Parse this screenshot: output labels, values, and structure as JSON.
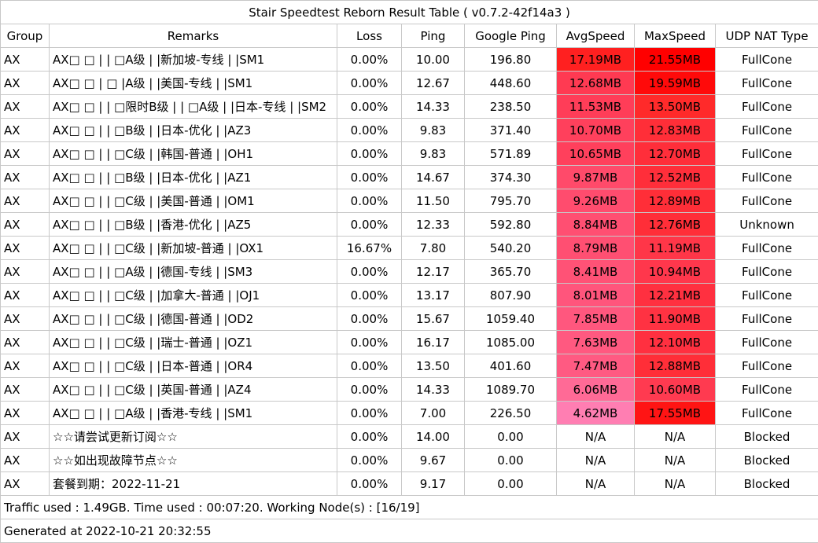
{
  "title": "Stair Speedtest Reborn Result Table ( v0.7.2-42f14a3 )",
  "headers": [
    "Group",
    "Remarks",
    "Loss",
    "Ping",
    "Google Ping",
    "AvgSpeed",
    "MaxSpeed",
    "UDP NAT Type"
  ],
  "rows": [
    {
      "group": "AX",
      "remarks": "AX□ □ | | □A级 | |新加坡-专线 | |SM1",
      "loss": "0.00%",
      "ping": "10.00",
      "google_ping": "196.80",
      "avg_speed": "17.19MB",
      "avg_color": "#ff2020",
      "max_speed": "21.55MB",
      "max_color": "#ff0000",
      "nat": "FullCone"
    },
    {
      "group": "AX",
      "remarks": "AX□ □ | □ |A级 | |美国-专线 | |SM1",
      "loss": "0.00%",
      "ping": "12.67",
      "google_ping": "448.60",
      "avg_speed": "12.68MB",
      "avg_color": "#ff3a52",
      "max_speed": "19.59MB",
      "max_color": "#ff0a0a",
      "nat": "FullCone"
    },
    {
      "group": "AX",
      "remarks": "AX□ □ | | □限时B级 | | □A级 | |日本-专线 | |SM2",
      "loss": "0.00%",
      "ping": "14.33",
      "google_ping": "238.50",
      "avg_speed": "11.53MB",
      "avg_color": "#ff3d58",
      "max_speed": "13.50MB",
      "max_color": "#ff2a2a",
      "nat": "FullCone"
    },
    {
      "group": "AX",
      "remarks": "AX□ □ | | □B级 | |日本-优化 | |AZ3",
      "loss": "0.00%",
      "ping": "9.83",
      "google_ping": "371.40",
      "avg_speed": "10.70MB",
      "avg_color": "#ff405c",
      "max_speed": "12.83MB",
      "max_color": "#ff2e38",
      "nat": "FullCone"
    },
    {
      "group": "AX",
      "remarks": "AX□ □ | | □C级 | |韩国-普通 | |OH1",
      "loss": "0.00%",
      "ping": "9.83",
      "google_ping": "571.89",
      "avg_speed": "10.65MB",
      "avg_color": "#ff405c",
      "max_speed": "12.70MB",
      "max_color": "#ff2e3a",
      "nat": "FullCone"
    },
    {
      "group": "AX",
      "remarks": "AX□ □ | | □B级 | |日本-优化 | |AZ1",
      "loss": "0.00%",
      "ping": "14.67",
      "google_ping": "374.30",
      "avg_speed": "9.87MB",
      "avg_color": "#ff4a6a",
      "max_speed": "12.52MB",
      "max_color": "#ff2e3a",
      "nat": "FullCone"
    },
    {
      "group": "AX",
      "remarks": "AX□ □ | | □C级 | |美国-普通 | |OM1",
      "loss": "0.00%",
      "ping": "11.50",
      "google_ping": "795.70",
      "avg_speed": "9.26MB",
      "avg_color": "#ff4c6e",
      "max_speed": "12.89MB",
      "max_color": "#ff2e38",
      "nat": "FullCone"
    },
    {
      "group": "AX",
      "remarks": "AX□ □ | | □B级 | |香港-优化 | |AZ5",
      "loss": "0.00%",
      "ping": "12.33",
      "google_ping": "592.80",
      "avg_speed": "8.84MB",
      "avg_color": "#ff4f72",
      "max_speed": "12.76MB",
      "max_color": "#ff2e38",
      "nat": "Unknown"
    },
    {
      "group": "AX",
      "remarks": "AX□ □ | | □C级 | |新加坡-普通 | |OX1",
      "loss": "16.67%",
      "ping": "7.80",
      "google_ping": "540.20",
      "avg_speed": "8.79MB",
      "avg_color": "#ff4f72",
      "max_speed": "11.19MB",
      "max_color": "#ff3648",
      "nat": "FullCone"
    },
    {
      "group": "AX",
      "remarks": "AX□ □ | | □A级 | |德国-专线 | |SM3",
      "loss": "0.00%",
      "ping": "12.17",
      "google_ping": "365.70",
      "avg_speed": "8.41MB",
      "avg_color": "#ff5276",
      "max_speed": "10.94MB",
      "max_color": "#ff374c",
      "nat": "FullCone"
    },
    {
      "group": "AX",
      "remarks": "AX□ □ | | □C级 | |加拿大-普通 | |OJ1",
      "loss": "0.00%",
      "ping": "13.17",
      "google_ping": "807.90",
      "avg_speed": "8.01MB",
      "avg_color": "#ff557c",
      "max_speed": "12.21MB",
      "max_color": "#ff3040",
      "nat": "FullCone"
    },
    {
      "group": "AX",
      "remarks": "AX□ □ | | □C级 | |德国-普通 | |OD2",
      "loss": "0.00%",
      "ping": "15.67",
      "google_ping": "1059.40",
      "avg_speed": "7.85MB",
      "avg_color": "#ff577e",
      "max_speed": "11.90MB",
      "max_color": "#ff3242",
      "nat": "FullCone"
    },
    {
      "group": "AX",
      "remarks": "AX□ □ | | □C级 | |瑞士-普通 | |OZ1",
      "loss": "0.00%",
      "ping": "16.17",
      "google_ping": "1085.00",
      "avg_speed": "7.63MB",
      "avg_color": "#ff5980",
      "max_speed": "12.10MB",
      "max_color": "#ff3040",
      "nat": "FullCone"
    },
    {
      "group": "AX",
      "remarks": "AX□ □ | | □C级 | |日本-普通 | |OR4",
      "loss": "0.00%",
      "ping": "13.50",
      "google_ping": "401.60",
      "avg_speed": "7.47MB",
      "avg_color": "#ff5a82",
      "max_speed": "12.88MB",
      "max_color": "#ff2e38",
      "nat": "FullCone"
    },
    {
      "group": "AX",
      "remarks": "AX□ □ | | □C级 | |英国-普通 | |AZ4",
      "loss": "0.00%",
      "ping": "14.33",
      "google_ping": "1089.70",
      "avg_speed": "6.06MB",
      "avg_color": "#ff6a96",
      "max_speed": "10.60MB",
      "max_color": "#ff3a50",
      "nat": "FullCone"
    },
    {
      "group": "AX",
      "remarks": "AX□ □ | | □A级 | |香港-专线 | |SM1",
      "loss": "0.00%",
      "ping": "7.00",
      "google_ping": "226.50",
      "avg_speed": "4.62MB",
      "avg_color": "#ff7eb2",
      "max_speed": "17.55MB",
      "max_color": "#ff1414",
      "nat": "FullCone"
    },
    {
      "group": "AX",
      "remarks": "☆☆请尝试更新订阅☆☆",
      "loss": "0.00%",
      "ping": "14.00",
      "google_ping": "0.00",
      "avg_speed": "N/A",
      "avg_color": "#ffffff",
      "max_speed": "N/A",
      "max_color": "#ffffff",
      "nat": "Blocked"
    },
    {
      "group": "AX",
      "remarks": "☆☆如出现故障节点☆☆",
      "loss": "0.00%",
      "ping": "9.67",
      "google_ping": "0.00",
      "avg_speed": "N/A",
      "avg_color": "#ffffff",
      "max_speed": "N/A",
      "max_color": "#ffffff",
      "nat": "Blocked"
    },
    {
      "group": "AX",
      "remarks": "套餐到期：2022-11-21",
      "loss": "0.00%",
      "ping": "9.17",
      "google_ping": "0.00",
      "avg_speed": "N/A",
      "avg_color": "#ffffff",
      "max_speed": "N/A",
      "max_color": "#ffffff",
      "nat": "Blocked"
    }
  ],
  "footer": {
    "traffic": "Traffic used : 1.49GB. Time used : 00:07:20. Working Node(s) : [16/19]",
    "generated": "Generated at 2022-10-21 20:32:55"
  }
}
